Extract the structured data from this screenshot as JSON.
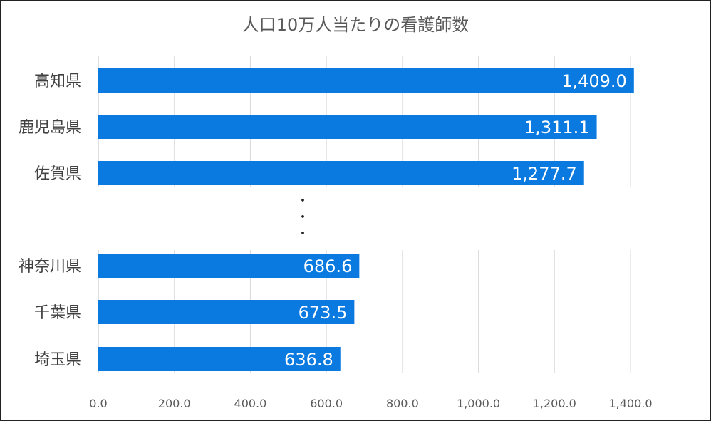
{
  "chart_data": {
    "type": "bar",
    "orientation": "horizontal",
    "title": "人口10万人当たりの看護師数",
    "categories": [
      "高知県",
      "鹿児島県",
      "佐賀県",
      "神奈川県",
      "千葉県",
      "埼玉県"
    ],
    "values": [
      1409.0,
      1311.1,
      1277.7,
      686.6,
      673.5,
      636.8
    ],
    "value_labels": [
      "1,409.0",
      "1,311.1",
      "1,277.7",
      "686.6",
      "673.5",
      "636.8"
    ],
    "gap_marker": "・・・",
    "xlim": [
      0,
      1400
    ],
    "x_ticks": [
      "0.0",
      "200.0",
      "400.0",
      "600.0",
      "800.0",
      "1,000.0",
      "1,200.0",
      "1,400.0"
    ],
    "grid": true,
    "bar_color": "#0A7AE0",
    "gridline_color": "#D9D9D9",
    "text_color": "#595959"
  }
}
